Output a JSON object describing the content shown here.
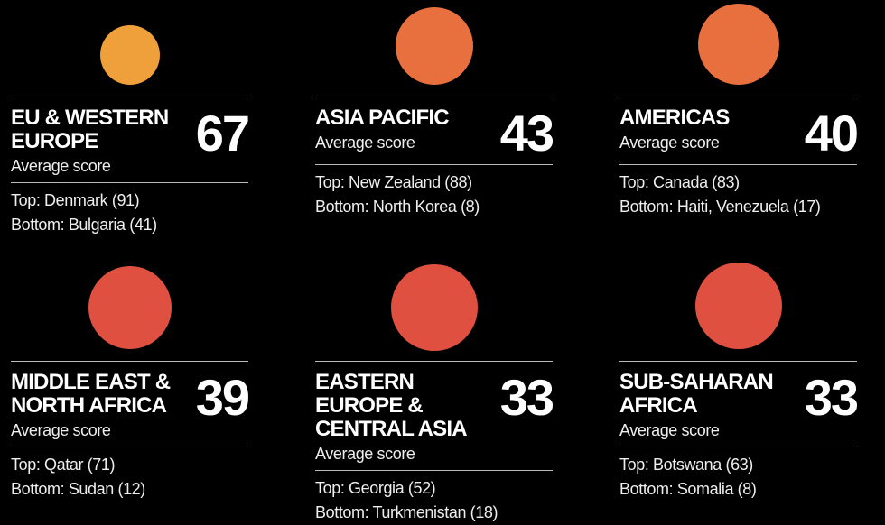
{
  "regions": [
    {
      "name": "EU & WESTERN EUROPE",
      "score": 67,
      "caption": "Average score",
      "top": "Top: Denmark (91)",
      "bottom": "Bottom: Bulgaria (41)"
    },
    {
      "name": "ASIA PACIFIC",
      "score": 43,
      "caption": "Average score",
      "top": "Top: New Zealand (88)",
      "bottom": "Bottom: North Korea (8)"
    },
    {
      "name": "AMERICAS",
      "score": 40,
      "caption": "Average score",
      "top": "Top: Canada (83)",
      "bottom": "Bottom: Haiti, Venezuela (17)"
    },
    {
      "name": "MIDDLE EAST & NORTH AFRICA",
      "score": 39,
      "caption": "Average score",
      "top": "Top: Qatar (71)",
      "bottom": "Bottom: Sudan (12)"
    },
    {
      "name": "EASTERN EUROPE & CENTRAL ASIA",
      "score": 33,
      "caption": "Average score",
      "top": "Top: Georgia (52)",
      "bottom": "Bottom: Turkmenistan (18)"
    },
    {
      "name": "SUB-SAHARAN AFRICA",
      "score": 33,
      "caption": "Average score",
      "top": "Top: Botswana (63)",
      "bottom": "Bottom: Somalia (8)"
    }
  ]
}
